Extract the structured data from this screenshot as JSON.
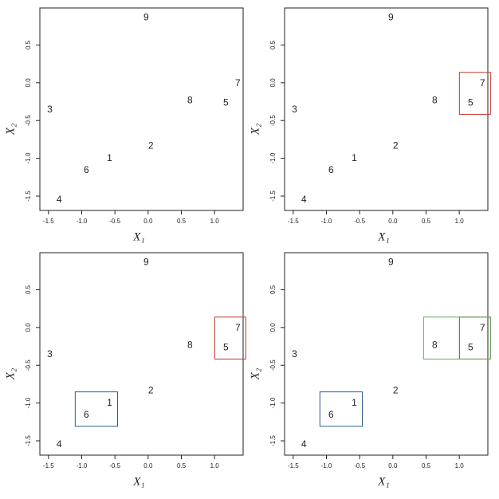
{
  "chart_data": [
    {
      "type": "scatter",
      "x": [
        -0.58,
        0.04,
        -1.48,
        -1.34,
        1.17,
        -0.93,
        1.35,
        0.63,
        -0.03
      ],
      "y": [
        -1.0,
        -0.84,
        -0.36,
        -1.55,
        -0.27,
        -1.16,
        -0.01,
        -0.24,
        0.86
      ],
      "labels": [
        "1",
        "2",
        "3",
        "4",
        "5",
        "6",
        "7",
        "8",
        "9"
      ],
      "x_label": "X₁",
      "y_label": "X₂",
      "xlim": [
        -1.63,
        1.43
      ],
      "ylim": [
        -1.69,
        0.99
      ],
      "xticks": [
        -1.5,
        {
          "value": -1.0,
          "label": "-1.0"
        },
        -0.5,
        {
          "value": 0.0,
          "label": "0.0"
        },
        0.5,
        {
          "value": 1.0,
          "label": "1.0"
        }
      ],
      "yticks": [
        -1.5,
        {
          "value": -1.0,
          "label": "-1.0"
        },
        -0.5,
        {
          "value": 0.0,
          "label": "0.0"
        },
        0.5
      ],
      "groups": []
    },
    {
      "type": "scatter",
      "x": [
        -0.58,
        0.04,
        -1.48,
        -1.34,
        1.17,
        -0.93,
        1.35,
        0.63,
        -0.03
      ],
      "y": [
        -1.0,
        -0.84,
        -0.36,
        -1.55,
        -0.27,
        -1.16,
        -0.01,
        -0.24,
        0.86
      ],
      "labels": [
        "1",
        "2",
        "3",
        "4",
        "5",
        "6",
        "7",
        "8",
        "9"
      ],
      "x_label": "X₁",
      "y_label": "X₂",
      "xlim": [
        -1.63,
        1.43
      ],
      "ylim": [
        -1.69,
        0.99
      ],
      "xticks": [
        -1.5,
        {
          "value": -1.0,
          "label": "-1.0"
        },
        -0.5,
        {
          "value": 0.0,
          "label": "0.0"
        },
        0.5,
        {
          "value": 1.0,
          "label": "1.0"
        }
      ],
      "yticks": [
        -1.5,
        {
          "value": -1.0,
          "label": "-1.0"
        },
        -0.5,
        {
          "value": 0.0,
          "label": "0.0"
        },
        0.5
      ],
      "groups": [
        {
          "members": [
            4,
            6
          ],
          "color": "#c8312a"
        }
      ]
    },
    {
      "type": "scatter",
      "x": [
        -0.58,
        0.04,
        -1.48,
        -1.34,
        1.17,
        -0.93,
        1.35,
        0.63,
        -0.03
      ],
      "y": [
        -1.0,
        -0.84,
        -0.36,
        -1.55,
        -0.27,
        -1.16,
        -0.01,
        -0.24,
        0.86
      ],
      "labels": [
        "1",
        "2",
        "3",
        "4",
        "5",
        "6",
        "7",
        "8",
        "9"
      ],
      "x_label": "X₁",
      "y_label": "X₂",
      "xlim": [
        -1.63,
        1.43
      ],
      "ylim": [
        -1.69,
        0.99
      ],
      "xticks": [
        -1.5,
        {
          "value": -1.0,
          "label": "-1.0"
        },
        -0.5,
        {
          "value": 0.0,
          "label": "0.0"
        },
        0.5,
        {
          "value": 1.0,
          "label": "1.0"
        }
      ],
      "yticks": [
        -1.5,
        {
          "value": -1.0,
          "label": "-1.0"
        },
        -0.5,
        {
          "value": 0.0,
          "label": "0.0"
        },
        0.5
      ],
      "groups": [
        {
          "members": [
            4,
            6
          ],
          "color": "#c8312a"
        },
        {
          "members": [
            0,
            5
          ],
          "color": "#2a5b8c"
        }
      ]
    },
    {
      "type": "scatter",
      "x": [
        -0.58,
        0.04,
        -1.48,
        -1.34,
        1.17,
        -0.93,
        1.35,
        0.63,
        -0.03
      ],
      "y": [
        -1.0,
        -0.84,
        -0.36,
        -1.55,
        -0.27,
        -1.16,
        -0.01,
        -0.24,
        0.86
      ],
      "labels": [
        "1",
        "2",
        "3",
        "4",
        "5",
        "6",
        "7",
        "8",
        "9"
      ],
      "x_label": "X₁",
      "y_label": "X₂",
      "xlim": [
        -1.63,
        1.43
      ],
      "ylim": [
        -1.69,
        0.99
      ],
      "xticks": [
        -1.5,
        {
          "value": -1.0,
          "label": "-1.0"
        },
        -0.5,
        {
          "value": 0.0,
          "label": "0.0"
        },
        0.5,
        {
          "value": 1.0,
          "label": "1.0"
        }
      ],
      "yticks": [
        -1.5,
        {
          "value": -1.0,
          "label": "-1.0"
        },
        -0.5,
        {
          "value": 0.0,
          "label": "0.0"
        },
        0.5
      ],
      "groups": [
        {
          "members": [
            4,
            6
          ],
          "color": "#a5402a"
        },
        {
          "members": [
            0,
            5
          ],
          "color": "#2a5b8c"
        },
        {
          "members": [
            4,
            6,
            7
          ],
          "color": "#5fae5f"
        }
      ]
    }
  ]
}
